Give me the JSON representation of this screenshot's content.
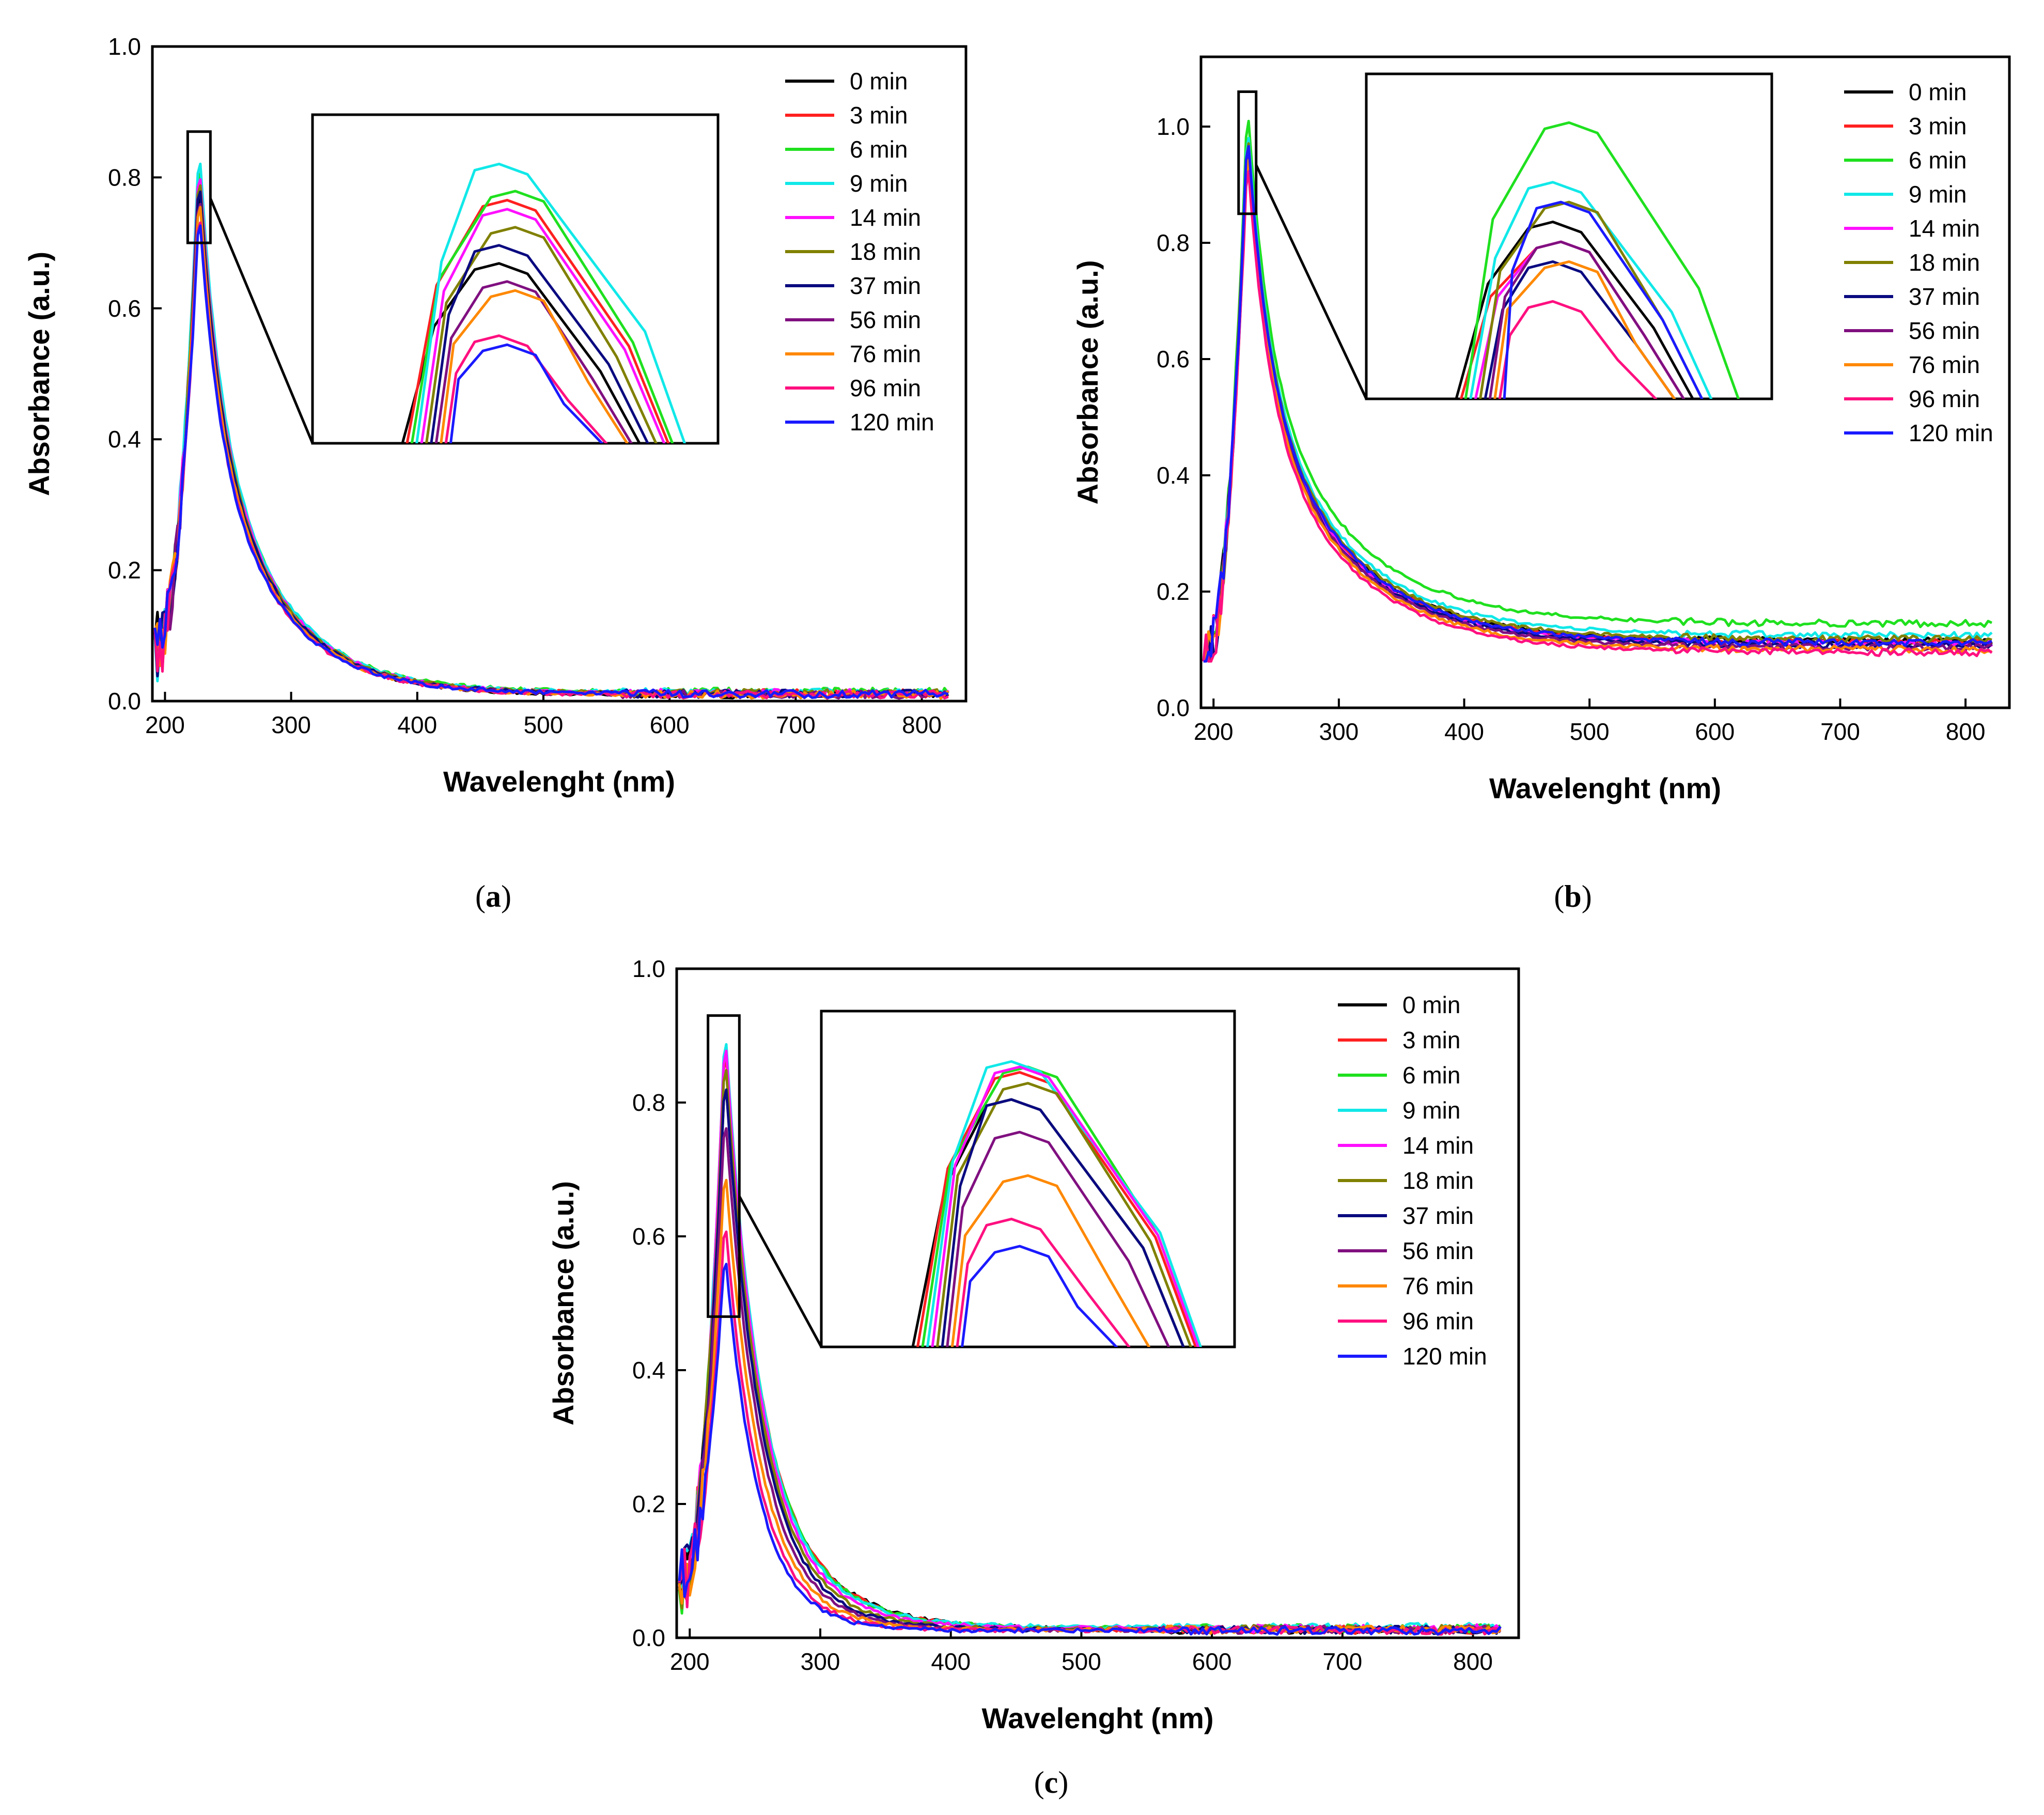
{
  "colors": {
    "0 min": "#000000",
    "3 min": "#ff2020",
    "6 min": "#1fe01f",
    "9 min": "#11e8e8",
    "14 min": "#ff10ff",
    "18 min": "#808000",
    "37 min": "#0a0a80",
    "56 min": "#801080",
    "76 min": "#ff8800",
    "96 min": "#ff1080",
    "120 min": "#1a1aff"
  },
  "chart_data": [
    {
      "id": "a",
      "type": "line",
      "caption": "a",
      "xlabel": "Wavelenght (nm)",
      "ylabel": "Absorbance (a.u.)",
      "xlim": [
        190,
        835
      ],
      "ylim": [
        0,
        1.0
      ],
      "xticks": [
        200,
        300,
        400,
        500,
        600,
        700,
        800
      ],
      "yticks": [
        "0.0",
        "0.2",
        "0.4",
        "0.6",
        "0.8",
        "1.0"
      ],
      "legend_position": "top-right",
      "inset_range": {
        "x": [
          218,
          236
        ],
        "y": [
          0.7,
          0.87
        ]
      },
      "series": [
        {
          "name": "0 min",
          "peak": 0.8,
          "floor": 0.01
        },
        {
          "name": "3 min",
          "peak": 0.835,
          "floor": 0.012
        },
        {
          "name": "6 min",
          "peak": 0.84,
          "floor": 0.014
        },
        {
          "name": "9 min",
          "peak": 0.855,
          "floor": 0.013
        },
        {
          "name": "14 min",
          "peak": 0.83,
          "floor": 0.012
        },
        {
          "name": "18 min",
          "peak": 0.82,
          "floor": 0.012
        },
        {
          "name": "37 min",
          "peak": 0.81,
          "floor": 0.011
        },
        {
          "name": "56 min",
          "peak": 0.79,
          "floor": 0.01
        },
        {
          "name": "76 min",
          "peak": 0.785,
          "floor": 0.01
        },
        {
          "name": "96 min",
          "peak": 0.76,
          "floor": 0.01
        },
        {
          "name": "120 min",
          "peak": 0.755,
          "floor": 0.011
        }
      ]
    },
    {
      "id": "b",
      "type": "line",
      "caption": "b",
      "xlabel": "Wavelenght (nm)",
      "ylabel": "Absorbance (a.u.)",
      "xlim": [
        190,
        835
      ],
      "ylim": [
        0,
        1.12
      ],
      "xticks": [
        200,
        300,
        400,
        500,
        600,
        700,
        800
      ],
      "yticks": [
        "0.0",
        "0.2",
        "0.4",
        "0.6",
        "0.8",
        "1.0"
      ],
      "legend_position": "top-right",
      "inset_range": {
        "x": [
          220,
          234
        ],
        "y": [
          0.85,
          1.06
        ]
      },
      "series": [
        {
          "name": "0 min",
          "peak": 0.99,
          "floor": 0.115
        },
        {
          "name": "3 min",
          "peak": 0.98,
          "floor": 0.113
        },
        {
          "name": "6 min",
          "peak": 1.04,
          "floor": 0.145
        },
        {
          "name": "9 min",
          "peak": 1.01,
          "floor": 0.125
        },
        {
          "name": "14 min",
          "peak": 0.98,
          "floor": 0.11
        },
        {
          "name": "18 min",
          "peak": 1.0,
          "floor": 0.118
        },
        {
          "name": "37 min",
          "peak": 0.97,
          "floor": 0.108
        },
        {
          "name": "56 min",
          "peak": 0.98,
          "floor": 0.104
        },
        {
          "name": "76 min",
          "peak": 0.97,
          "floor": 0.1
        },
        {
          "name": "96 min",
          "peak": 0.95,
          "floor": 0.095
        },
        {
          "name": "120 min",
          "peak": 1.0,
          "floor": 0.112
        }
      ]
    },
    {
      "id": "c",
      "type": "line",
      "caption": "c",
      "xlabel": "Wavelenght (nm)",
      "ylabel": "Absorbance (a.u.)",
      "xlim": [
        190,
        835
      ],
      "ylim": [
        0,
        1.0
      ],
      "xticks": [
        200,
        300,
        400,
        500,
        600,
        700,
        800
      ],
      "yticks": [
        "0.0",
        "0.2",
        "0.4",
        "0.6",
        "0.8",
        "1.0"
      ],
      "legend_position": "top-right",
      "inset_range": {
        "x": [
          214,
          238
        ],
        "y": [
          0.48,
          0.93
        ]
      },
      "series": [
        {
          "name": "0 min",
          "peak": 0.85,
          "floor": 0.012
        },
        {
          "name": "3 min",
          "peak": 0.9,
          "floor": 0.012
        },
        {
          "name": "6 min",
          "peak": 0.91,
          "floor": 0.014
        },
        {
          "name": "9 min",
          "peak": 0.92,
          "floor": 0.016
        },
        {
          "name": "14 min",
          "peak": 0.91,
          "floor": 0.014
        },
        {
          "name": "18 min",
          "peak": 0.88,
          "floor": 0.013
        },
        {
          "name": "37 min",
          "peak": 0.85,
          "floor": 0.012
        },
        {
          "name": "56 min",
          "peak": 0.79,
          "floor": 0.012
        },
        {
          "name": "76 min",
          "peak": 0.71,
          "floor": 0.012
        },
        {
          "name": "96 min",
          "peak": 0.63,
          "floor": 0.011
        },
        {
          "name": "120 min",
          "peak": 0.58,
          "floor": 0.011
        }
      ]
    }
  ]
}
